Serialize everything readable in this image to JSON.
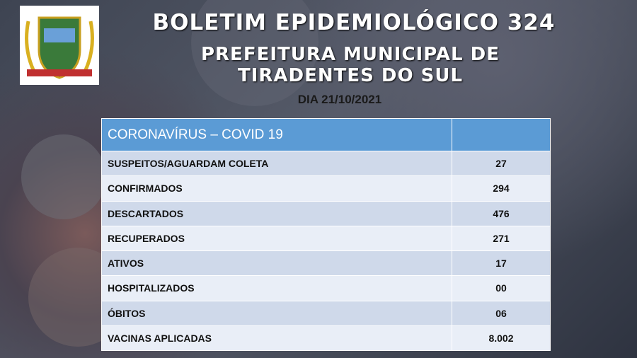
{
  "header": {
    "title": "BOLETIM EPIDEMIOLÓGICO 324",
    "subtitle": "PREFEITURA MUNICIPAL DE TIRADENTES DO SUL",
    "date": "DIA 21/10/2021"
  },
  "table": {
    "header": [
      "CORONAVÍRUS – COVID 19",
      ""
    ],
    "rows": [
      [
        "SUSPEITOS/AGUARDAM COLETA",
        "27"
      ],
      [
        "CONFIRMADOS",
        "294"
      ],
      [
        "DESCARTADOS",
        "476"
      ],
      [
        "RECUPERADOS",
        "271"
      ],
      [
        "ATIVOS",
        "17"
      ],
      [
        "HOSPITALIZADOS",
        "00"
      ],
      [
        "ÓBITOS",
        "06"
      ],
      [
        "VACINAS APLICADAS",
        "8.002"
      ]
    ]
  }
}
